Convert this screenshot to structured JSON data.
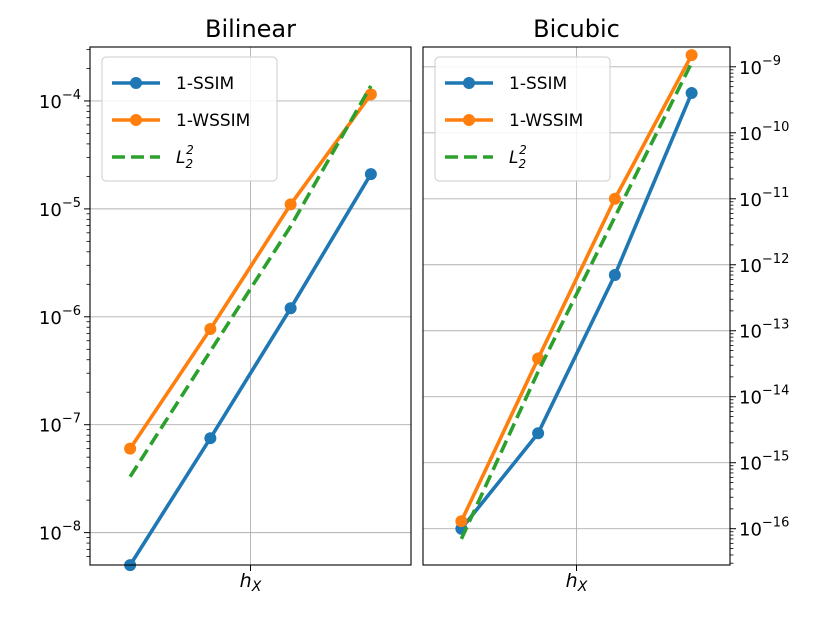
{
  "chart_data": [
    {
      "type": "line",
      "title": "Bilinear",
      "xlabel": "h_X",
      "ylabel": "",
      "yscale": "log",
      "ylim_exp": [
        -8.3,
        -3.5
      ],
      "xlim": [
        0.5,
        4.5
      ],
      "x": [
        1,
        2,
        3,
        4
      ],
      "ytick_exponents": [
        -8,
        -7,
        -6,
        -5,
        -4
      ],
      "ytick_labels": [
        "10^-8",
        "10^-7",
        "10^-6",
        "10^-5",
        "10^-4"
      ],
      "grid": true,
      "legend_position": "top-left",
      "series": [
        {
          "name": "1-SSIM",
          "color": "#1f77b4",
          "style": "solid",
          "marker": "circle",
          "values": [
            5e-09,
            7.5e-08,
            1.2e-06,
            2.1e-05
          ]
        },
        {
          "name": "1-WSSIM",
          "color": "#ff7f0e",
          "style": "solid",
          "marker": "circle",
          "values": [
            6e-08,
            7.7e-07,
            1.1e-05,
            0.000115
          ]
        },
        {
          "name": "L_2^2",
          "color": "#2ca02c",
          "style": "dashed",
          "marker": "none",
          "values": [
            3.3e-08,
            4.8e-07,
            6.9e-06,
            0.000138
          ]
        }
      ]
    },
    {
      "type": "line",
      "title": "Bicubic",
      "xlabel": "h_X",
      "ylabel": "",
      "yscale": "log",
      "ylim_exp": [
        -16.55,
        -8.7
      ],
      "xlim": [
        0.5,
        4.5
      ],
      "x": [
        1,
        2,
        3,
        4
      ],
      "ytick_exponents": [
        -16,
        -15,
        -14,
        -13,
        -12,
        -11,
        -10,
        -9
      ],
      "ytick_labels": [
        "10^-16",
        "10^-15",
        "10^-14",
        "10^-13",
        "10^-12",
        "10^-11",
        "10^-10",
        "10^-9"
      ],
      "yaxis_side": "right",
      "grid": true,
      "legend_position": "top-left",
      "series": [
        {
          "name": "1-SSIM",
          "color": "#1f77b4",
          "style": "solid",
          "marker": "circle",
          "values": [
            1e-16,
            2.8e-15,
            7e-13,
            4e-10
          ]
        },
        {
          "name": "1-WSSIM",
          "color": "#ff7f0e",
          "style": "solid",
          "marker": "circle",
          "values": [
            1.3e-16,
            3.8e-14,
            1e-11,
            1.5e-09
          ]
        },
        {
          "name": "L_2^2",
          "color": "#2ca02c",
          "style": "dashed",
          "marker": "none",
          "values": [
            7e-17,
            2.4e-14,
            5.3e-12,
            1.15e-09
          ]
        }
      ]
    }
  ]
}
